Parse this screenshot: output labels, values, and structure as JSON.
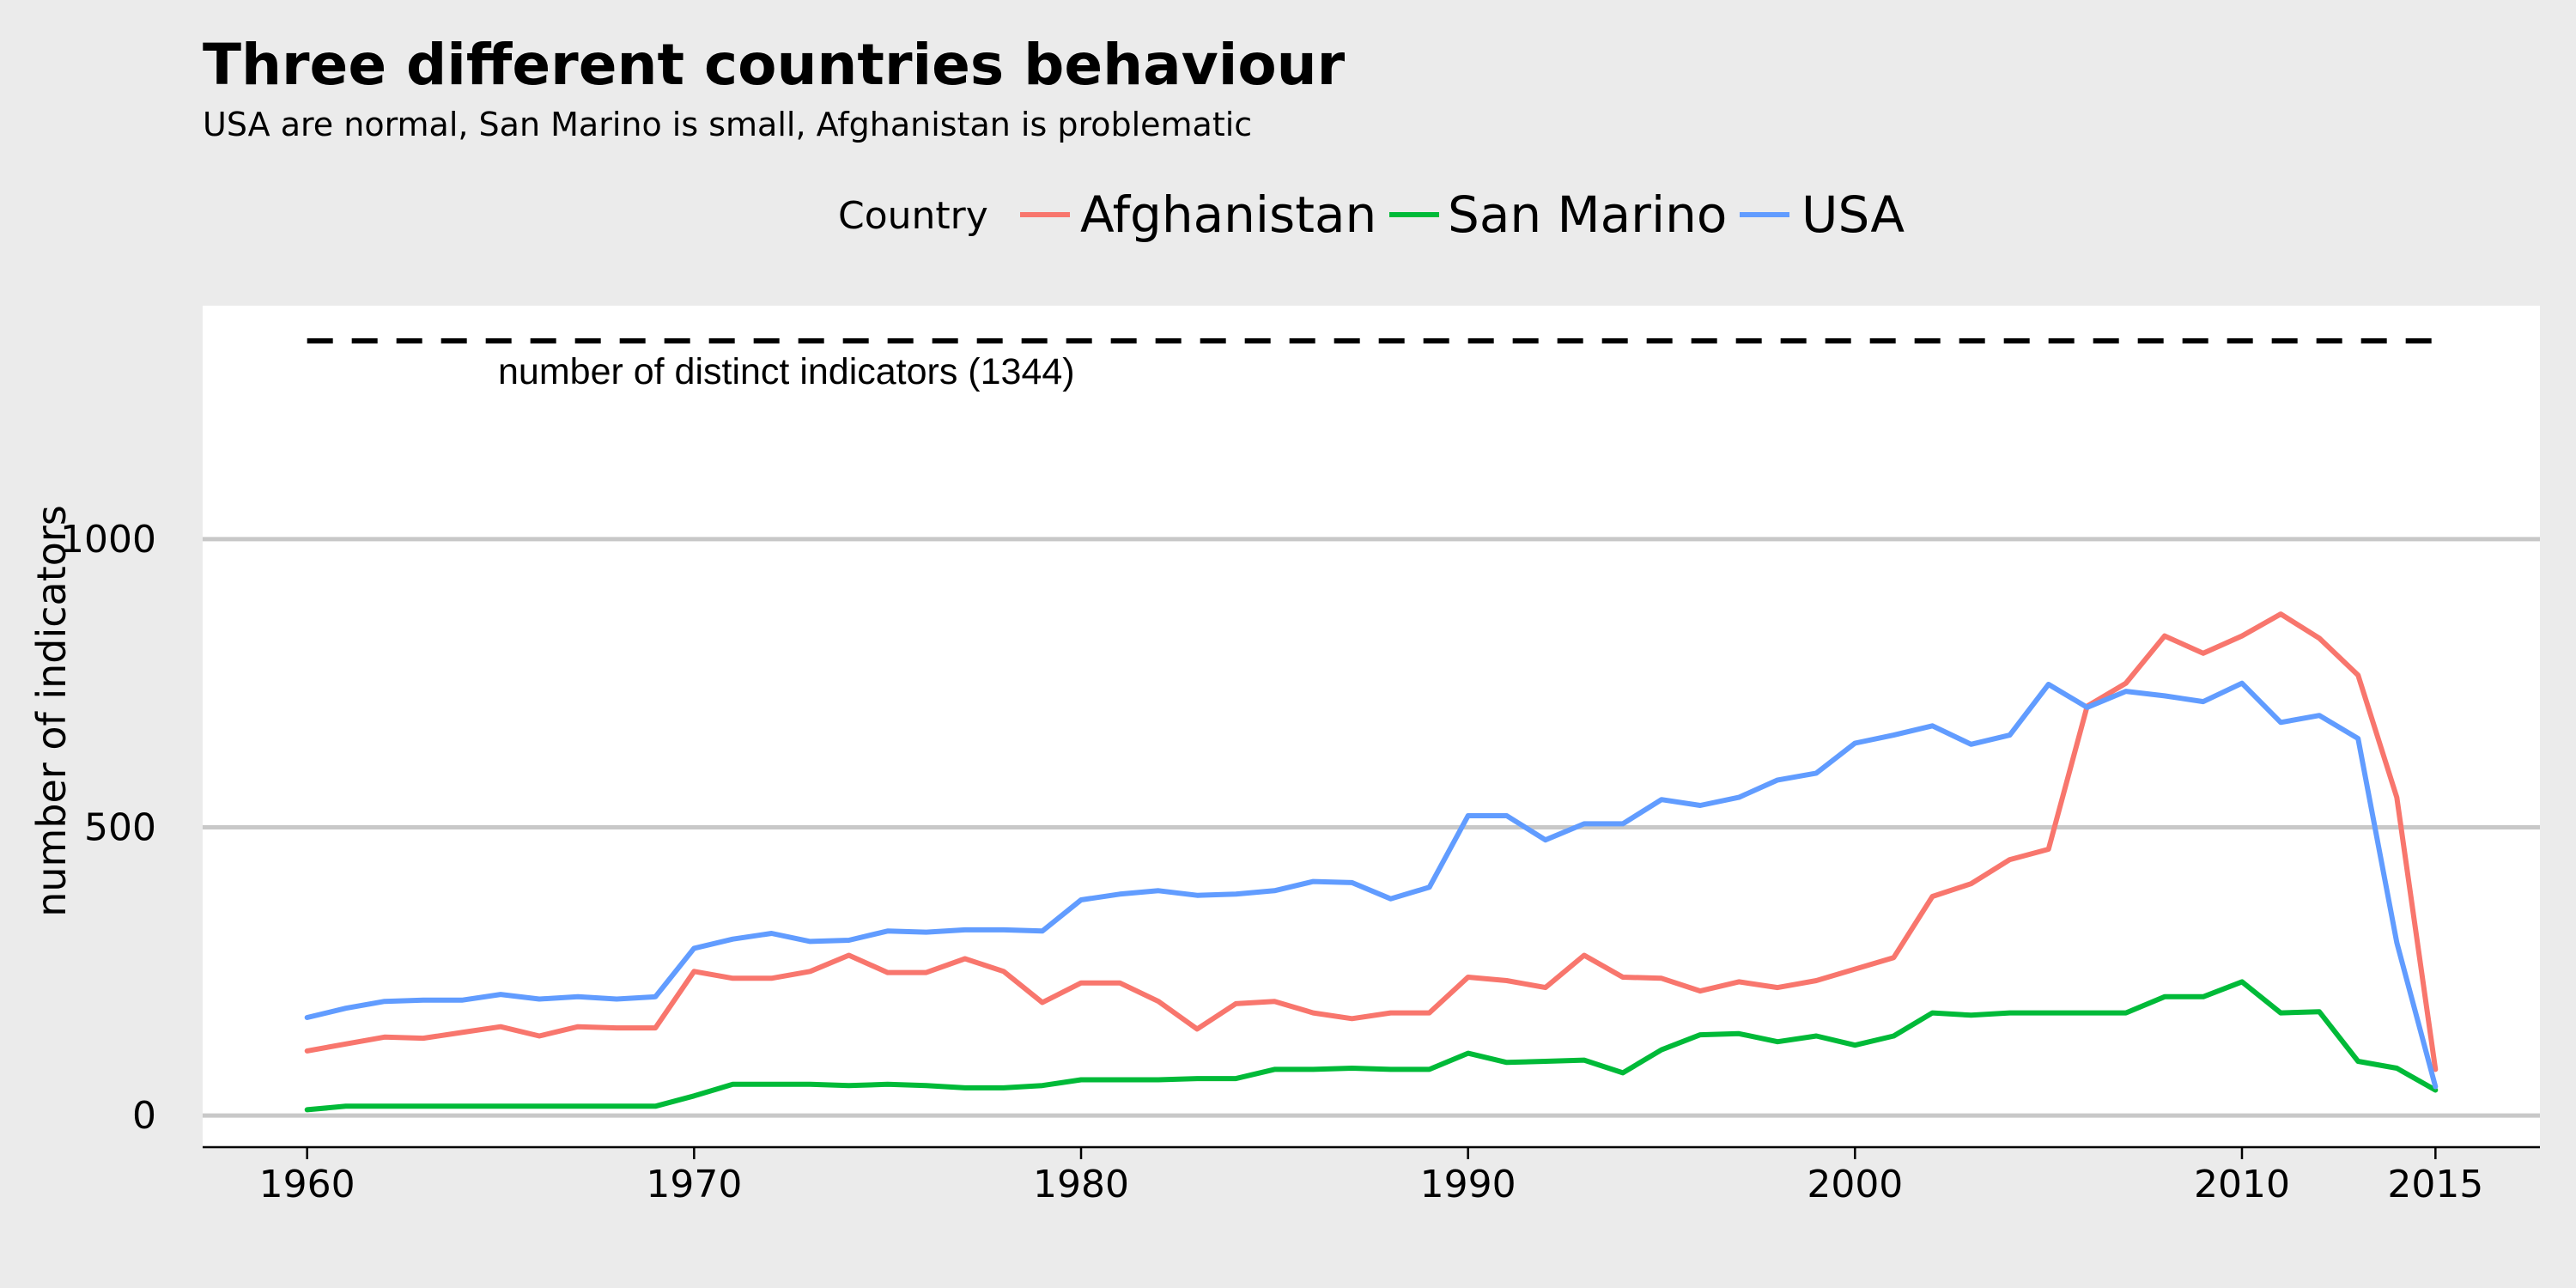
{
  "chart_data": {
    "type": "line",
    "title": "Three different countries behaviour",
    "subtitle": "USA are normal, San Marino is small, Afghanistan is problematic",
    "xlabel": "",
    "ylabel": "number of indicators",
    "xlim": [
      1957.3,
      2017.7
    ],
    "ylim": [
      -55,
      1405
    ],
    "x_ticks": [
      1960,
      1970,
      1980,
      1990,
      2000,
      2010,
      2015
    ],
    "y_ticks": [
      0,
      500,
      1000
    ],
    "grid": "horizontal",
    "legend": {
      "title": "Country",
      "position": "top",
      "entries": [
        "Afghanistan",
        "San Marino",
        "USA"
      ]
    },
    "reference_line": {
      "value": 1344,
      "style": "dashed",
      "x_range": [
        1960,
        2015
      ],
      "label": "number of distinct indicators (1344)"
    },
    "x": [
      1960,
      1961,
      1962,
      1963,
      1964,
      1965,
      1966,
      1967,
      1968,
      1969,
      1970,
      1971,
      1972,
      1973,
      1974,
      1975,
      1976,
      1977,
      1978,
      1979,
      1980,
      1981,
      1982,
      1983,
      1984,
      1985,
      1986,
      1987,
      1988,
      1989,
      1990,
      1991,
      1992,
      1993,
      1994,
      1995,
      1996,
      1997,
      1998,
      1999,
      2000,
      2001,
      2002,
      2003,
      2004,
      2005,
      2006,
      2007,
      2008,
      2009,
      2010,
      2011,
      2012,
      2013,
      2014,
      2015
    ],
    "series": [
      {
        "name": "Afghanistan",
        "color": "#f8766d",
        "values": [
          112,
          124,
          136,
          134,
          144,
          154,
          138,
          154,
          152,
          152,
          250,
          238,
          238,
          250,
          278,
          248,
          248,
          272,
          250,
          196,
          230,
          230,
          198,
          150,
          194,
          198,
          178,
          168,
          178,
          178,
          240,
          234,
          222,
          278,
          240,
          238,
          216,
          232,
          222,
          234,
          254,
          274,
          380,
          402,
          444,
          462,
          710,
          750,
          832,
          802,
          832,
          870,
          828,
          764,
          552,
          80
        ]
      },
      {
        "name": "San Marino",
        "color": "#00ba38",
        "values": [
          10,
          16,
          16,
          16,
          16,
          16,
          16,
          16,
          16,
          16,
          34,
          54,
          54,
          54,
          52,
          54,
          52,
          48,
          48,
          52,
          62,
          62,
          62,
          64,
          64,
          80,
          80,
          82,
          80,
          80,
          108,
          92,
          94,
          96,
          74,
          114,
          140,
          142,
          128,
          138,
          122,
          138,
          178,
          174,
          178,
          178,
          178,
          178,
          206,
          206,
          232,
          178,
          180,
          94,
          82,
          44
        ]
      },
      {
        "name": "USA",
        "color": "#619cff",
        "values": [
          170,
          186,
          198,
          200,
          200,
          210,
          202,
          206,
          202,
          206,
          290,
          306,
          316,
          302,
          304,
          320,
          318,
          322,
          322,
          320,
          374,
          384,
          390,
          382,
          384,
          390,
          406,
          404,
          376,
          396,
          520,
          520,
          478,
          506,
          506,
          548,
          538,
          552,
          582,
          594,
          646,
          660,
          676,
          644,
          660,
          748,
          708,
          736,
          728,
          718,
          750,
          682,
          694,
          654,
          300,
          50
        ]
      }
    ]
  }
}
